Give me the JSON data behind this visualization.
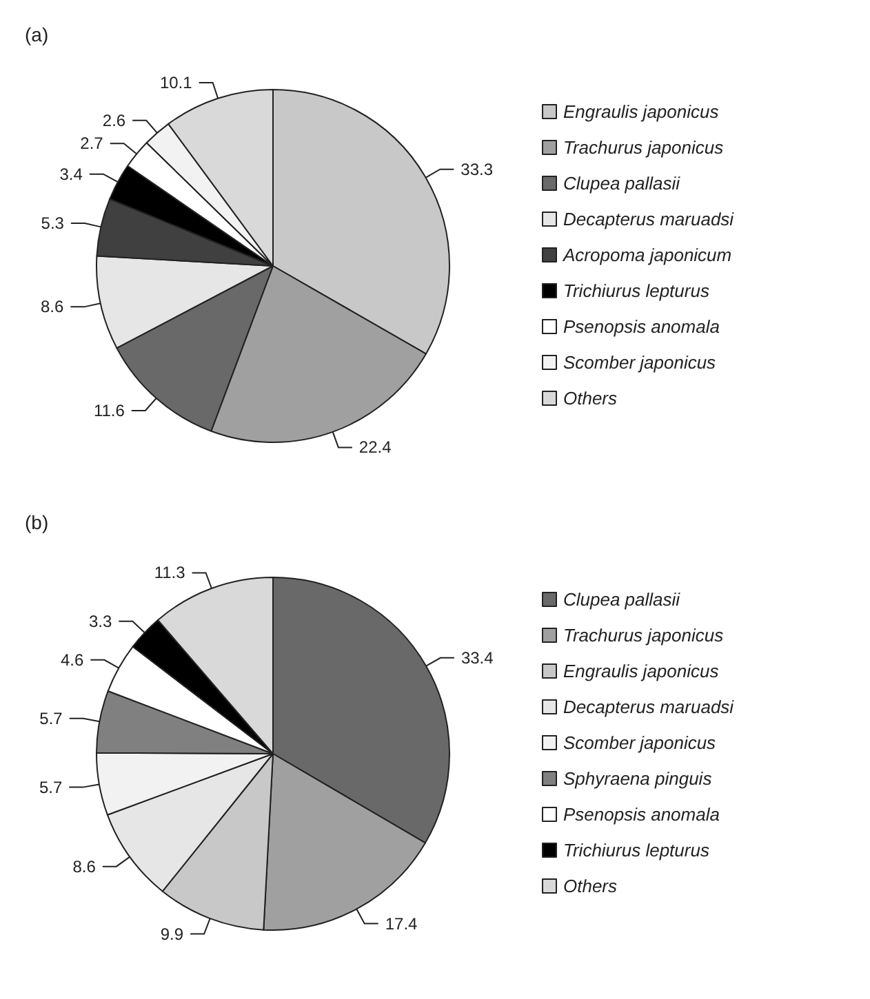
{
  "chart_data": [
    {
      "type": "pie",
      "title": "(a)",
      "categories": [
        "Engraulis japonicus",
        "Trachurus japonicus",
        "Clupea pallasii",
        "Decapterus maruadsi",
        "Acropoma japonicum",
        "Trichiurus lepturus",
        "Psenopsis anomala",
        "Scomber japonicus",
        "Others"
      ],
      "values": [
        33.3,
        22.4,
        11.6,
        8.6,
        5.3,
        3.4,
        2.7,
        2.6,
        10.1
      ],
      "colors": [
        "#c8c8c8",
        "#a0a0a0",
        "#696969",
        "#e6e6e6",
        "#404040",
        "#000000",
        "#ffffff",
        "#f2f2f2",
        "#d9d9d9"
      ],
      "data_labels": true,
      "legend": "right"
    },
    {
      "type": "pie",
      "title": "(b)",
      "categories": [
        "Clupea pallasii",
        "Trachurus japonicus",
        "Engraulis japonicus",
        "Decapterus maruadsi",
        "Scomber japonicus",
        "Sphyraena pinguis",
        "Psenopsis anomala",
        "Trichiurus lepturus",
        "Others"
      ],
      "values": [
        33.4,
        17.4,
        9.9,
        8.6,
        5.7,
        5.7,
        4.6,
        3.3,
        11.3
      ],
      "colors": [
        "#696969",
        "#a0a0a0",
        "#c8c8c8",
        "#e6e6e6",
        "#f2f2f2",
        "#808080",
        "#ffffff",
        "#000000",
        "#d9d9d9"
      ],
      "data_labels": true,
      "legend": "right"
    }
  ]
}
